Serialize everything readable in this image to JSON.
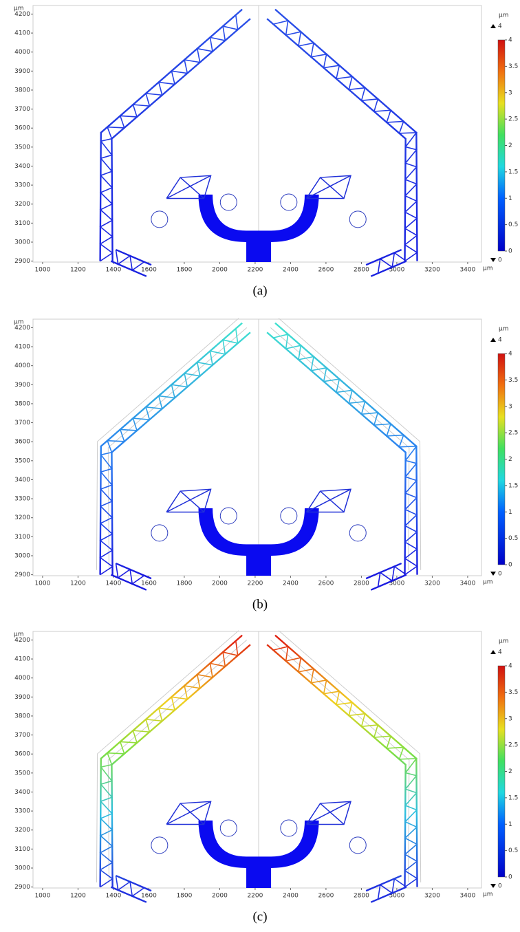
{
  "panels": [
    {
      "label": "(a)",
      "x_axis": {
        "unit": "μm",
        "lim": [
          946,
          3478
        ],
        "ticks": [
          1000,
          1200,
          1400,
          1600,
          1800,
          2000,
          2200,
          2400,
          2600,
          2800,
          3000,
          3200,
          3400
        ]
      },
      "y_axis": {
        "unit": "μm",
        "lim": [
          2895,
          4245
        ],
        "ticks": [
          2900,
          3000,
          3100,
          3200,
          3300,
          3400,
          3500,
          3600,
          3700,
          3800,
          3900,
          4000,
          4100,
          4200
        ]
      },
      "colorbar": {
        "unit": "μm",
        "max": 4,
        "min": 0,
        "lim": [
          0,
          4
        ],
        "ticks": [
          0,
          0.5,
          1,
          1.5,
          2,
          2.5,
          3,
          3.5,
          4
        ]
      }
    },
    {
      "label": "(b)",
      "x_axis": {
        "unit": "μm",
        "lim": [
          946,
          3478
        ],
        "ticks": [
          1000,
          1200,
          1400,
          1600,
          1800,
          2000,
          2200,
          2400,
          2600,
          2800,
          3000,
          3200,
          3400
        ]
      },
      "y_axis": {
        "unit": "μm",
        "lim": [
          2895,
          4245
        ],
        "ticks": [
          2900,
          3000,
          3100,
          3200,
          3300,
          3400,
          3500,
          3600,
          3700,
          3800,
          3900,
          4000,
          4100,
          4200
        ]
      },
      "colorbar": {
        "unit": "μm",
        "max": 4,
        "min": 0,
        "lim": [
          0,
          4
        ],
        "ticks": [
          0,
          0.5,
          1,
          1.5,
          2,
          2.5,
          3,
          3.5,
          4
        ]
      }
    },
    {
      "label": "(c)",
      "x_axis": {
        "unit": "μm",
        "lim": [
          946,
          3478
        ],
        "ticks": [
          1000,
          1200,
          1400,
          1600,
          1800,
          2000,
          2200,
          2400,
          2600,
          2800,
          3000,
          3200,
          3400
        ]
      },
      "y_axis": {
        "unit": "μm",
        "lim": [
          2895,
          4245
        ],
        "ticks": [
          2900,
          3000,
          3100,
          3200,
          3300,
          3400,
          3500,
          3600,
          3700,
          3800,
          3900,
          4000,
          4100,
          4200
        ]
      },
      "colorbar": {
        "unit": "μm",
        "max": 4,
        "min": 0,
        "lim": [
          0,
          4
        ],
        "ticks": [
          0,
          0.5,
          1,
          1.5,
          2,
          2.5,
          3,
          3.5,
          4
        ]
      }
    }
  ]
}
